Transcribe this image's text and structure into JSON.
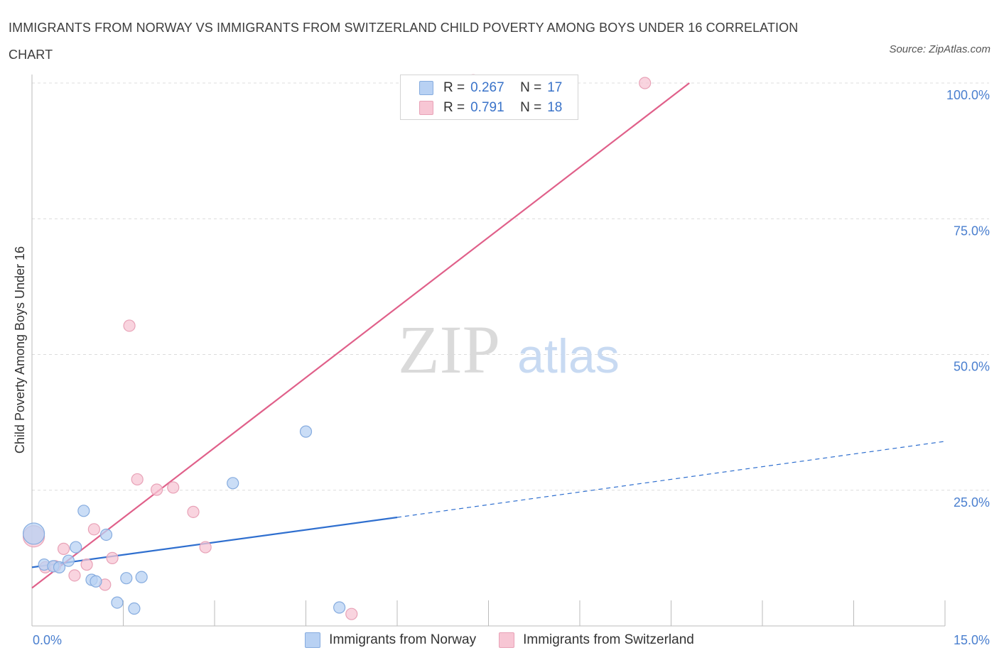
{
  "title": "IMMIGRANTS FROM NORWAY VS IMMIGRANTS FROM SWITZERLAND CHILD POVERTY AMONG BOYS UNDER 16 CORRELATION CHART",
  "source": "Source: ZipAtlas.com",
  "watermark": {
    "zip": "ZIP",
    "atlas": "atlas"
  },
  "colors": {
    "norway_fill": "#b8d1f3",
    "norway_stroke": "#86acdf",
    "norway_line": "#2f6fcf",
    "swiss_fill": "#f7c6d4",
    "swiss_stroke": "#e8a2b7",
    "swiss_line": "#e0608a",
    "grid": "#dcdcdc",
    "axis": "#bbbbbb",
    "tick_text": "#4a7fcf"
  },
  "legend": {
    "rows": [
      {
        "r_label": "R =",
        "r_value": "0.267",
        "n_label": "N =",
        "n_value": "17"
      },
      {
        "r_label": "R =",
        "r_value": "0.791",
        "n_label": "N =",
        "n_value": "18"
      }
    ]
  },
  "chart_data": {
    "type": "scatter",
    "title": "IMMIGRANTS FROM NORWAY VS IMMIGRANTS FROM SWITZERLAND CHILD POVERTY AMONG BOYS UNDER 16 CORRELATION CHART",
    "xlabel": "",
    "ylabel": "Child Poverty Among Boys Under 16",
    "xlim": [
      0,
      15
    ],
    "ylim": [
      0,
      100
    ],
    "x_tick_labels": [
      "0.0%",
      "15.0%"
    ],
    "y_ticks": [
      25,
      50,
      75,
      100
    ],
    "y_tick_labels": [
      "25.0%",
      "50.0%",
      "75.0%",
      "100.0%"
    ],
    "grid": true,
    "legend_position": "top-center",
    "series": [
      {
        "name": "Immigrants from Norway",
        "points": [
          {
            "x": 0.03,
            "y": 17.0,
            "size": "large"
          },
          {
            "x": 0.2,
            "y": 11.3
          },
          {
            "x": 0.35,
            "y": 11.0
          },
          {
            "x": 0.45,
            "y": 10.8
          },
          {
            "x": 0.6,
            "y": 12.0
          },
          {
            "x": 0.72,
            "y": 14.5
          },
          {
            "x": 0.85,
            "y": 21.2
          },
          {
            "x": 0.98,
            "y": 8.5
          },
          {
            "x": 1.05,
            "y": 8.2
          },
          {
            "x": 1.22,
            "y": 16.8
          },
          {
            "x": 1.4,
            "y": 4.3
          },
          {
            "x": 1.55,
            "y": 8.8
          },
          {
            "x": 1.68,
            "y": 3.2
          },
          {
            "x": 1.8,
            "y": 9.0
          },
          {
            "x": 3.3,
            "y": 26.3
          },
          {
            "x": 4.5,
            "y": 35.8
          },
          {
            "x": 5.05,
            "y": 3.4
          }
        ],
        "trend": {
          "x0": 0.0,
          "y0": 10.8,
          "x1": 6.0,
          "y1": 20.0,
          "dashed_to_x": 15.0,
          "dashed_to_y": 34.0
        }
      },
      {
        "name": "Immigrants from Switzerland",
        "points": [
          {
            "x": 0.03,
            "y": 16.5,
            "size": "large"
          },
          {
            "x": 0.22,
            "y": 10.8
          },
          {
            "x": 0.38,
            "y": 11.0
          },
          {
            "x": 0.52,
            "y": 14.2
          },
          {
            "x": 0.7,
            "y": 9.3
          },
          {
            "x": 0.9,
            "y": 11.3
          },
          {
            "x": 1.02,
            "y": 17.8
          },
          {
            "x": 1.2,
            "y": 7.6
          },
          {
            "x": 1.32,
            "y": 12.5
          },
          {
            "x": 1.6,
            "y": 55.3
          },
          {
            "x": 1.73,
            "y": 27.0
          },
          {
            "x": 2.05,
            "y": 25.1
          },
          {
            "x": 2.32,
            "y": 25.5
          },
          {
            "x": 2.65,
            "y": 21.0
          },
          {
            "x": 2.85,
            "y": 14.5
          },
          {
            "x": 5.25,
            "y": 2.2
          },
          {
            "x": 7.25,
            "y": 100.5
          },
          {
            "x": 10.07,
            "y": 100.0
          }
        ],
        "trend": {
          "x0": 0.0,
          "y0": 7.0,
          "x1": 10.8,
          "y1": 100.0
        }
      }
    ]
  },
  "bottom_legend": {
    "items": [
      {
        "label": "Immigrants from Norway"
      },
      {
        "label": "Immigrants from Switzerland"
      }
    ]
  }
}
